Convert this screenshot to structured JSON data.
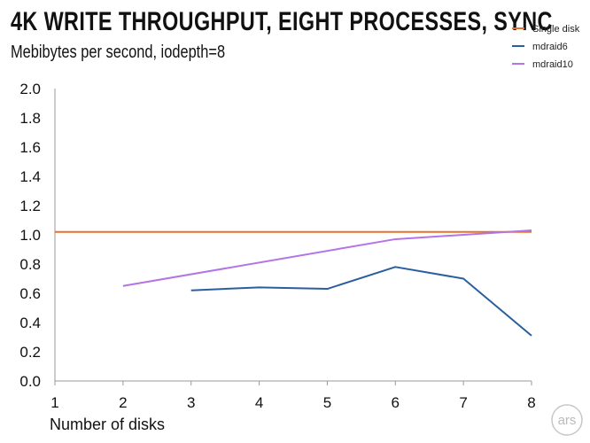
{
  "chart_data": {
    "type": "line",
    "title": "4K WRITE THROUGHPUT, EIGHT PROCESSES, SYNC",
    "subtitle": "Mebibytes per second, iodepth=8",
    "xlabel": "Number of disks",
    "ylabel": "",
    "x": [
      1,
      2,
      3,
      4,
      5,
      6,
      7,
      8
    ],
    "xlim": [
      1,
      8
    ],
    "ylim": [
      0,
      2.0
    ],
    "yticks": [
      "0.0",
      "0.2",
      "0.4",
      "0.6",
      "0.8",
      "1.0",
      "1.2",
      "1.4",
      "1.6",
      "1.8",
      "2.0"
    ],
    "xticks": [
      "1",
      "2",
      "3",
      "4",
      "5",
      "6",
      "7",
      "8"
    ],
    "grid": false,
    "legend_position": "top-right",
    "series": [
      {
        "name": "Single disk",
        "color": "#e8712a",
        "points": [
          [
            1,
            1.02
          ],
          [
            8,
            1.02
          ]
        ]
      },
      {
        "name": "mdraid6",
        "color": "#2a5f9e",
        "points": [
          [
            3,
            0.62
          ],
          [
            4,
            0.64
          ],
          [
            5,
            0.63
          ],
          [
            6,
            0.78
          ],
          [
            7,
            0.7
          ],
          [
            8,
            0.31
          ]
        ]
      },
      {
        "name": "mdraid10",
        "color": "#b374e6",
        "points": [
          [
            2,
            0.65
          ],
          [
            6,
            0.97
          ],
          [
            8,
            1.03
          ]
        ]
      }
    ]
  },
  "logo": {
    "text": "ars",
    "icon": "ars-logo-icon"
  }
}
